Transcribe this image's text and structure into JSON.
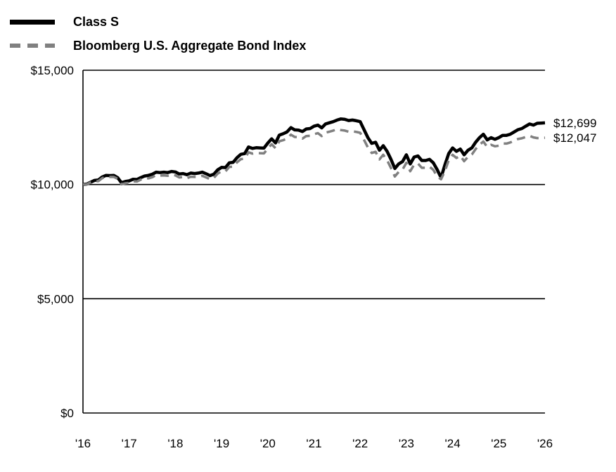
{
  "legend": {
    "items": [
      {
        "label": "Class S",
        "color": "#000000",
        "style": "solid"
      },
      {
        "label": "Bloomberg U.S. Aggregate Bond Index",
        "color": "#808080",
        "style": "dashed"
      }
    ]
  },
  "chart_data": {
    "type": "line",
    "title": "",
    "xlabel": "",
    "ylabel": "",
    "grid": "horizontal",
    "legend_position": "top-left",
    "xlim": [
      2016,
      2026
    ],
    "ylim": [
      0,
      15000
    ],
    "y_ticks": [
      0,
      5000,
      10000,
      15000
    ],
    "y_tick_labels": [
      "$0",
      "$5,000",
      "$10,000",
      "$15,000"
    ],
    "x_tick_labels": [
      "'16",
      "'17",
      "'18",
      "'19",
      "'20",
      "'21",
      "'22",
      "'23",
      "'24",
      "'25",
      "'26"
    ],
    "x_start": 2016,
    "x_step_years": 0.0833333,
    "series": [
      {
        "name": "Class S",
        "color": "#000000",
        "style": "solid",
        "stroke_width": 4.5,
        "end_label": "$12,699",
        "end_value": 12699,
        "values": [
          10000,
          10020,
          10100,
          10180,
          10200,
          10330,
          10400,
          10390,
          10400,
          10300,
          10080,
          10130,
          10160,
          10230,
          10220,
          10300,
          10370,
          10400,
          10450,
          10540,
          10520,
          10540,
          10520,
          10570,
          10550,
          10460,
          10480,
          10430,
          10500,
          10480,
          10500,
          10540,
          10470,
          10390,
          10450,
          10640,
          10750,
          10740,
          10950,
          10970,
          11170,
          11320,
          11350,
          11640,
          11580,
          11610,
          11600,
          11590,
          11810,
          12000,
          11820,
          12160,
          12220,
          12300,
          12490,
          12390,
          12380,
          12320,
          12430,
          12450,
          12550,
          12600,
          12480,
          12650,
          12700,
          12750,
          12820,
          12870,
          12850,
          12800,
          12820,
          12790,
          12750,
          12400,
          12050,
          11800,
          11850,
          11500,
          11700,
          11450,
          11100,
          10700,
          10900,
          11000,
          11300,
          10900,
          11200,
          11250,
          11050,
          11050,
          11100,
          10950,
          10650,
          10300,
          10850,
          11350,
          11600,
          11450,
          11550,
          11300,
          11500,
          11600,
          11850,
          12050,
          12200,
          11950,
          12050,
          11980,
          12050,
          12150,
          12150,
          12200,
          12300,
          12400,
          12450,
          12550,
          12650,
          12600,
          12680,
          12690,
          12699
        ]
      },
      {
        "name": "Bloomberg U.S. Aggregate Bond Index",
        "color": "#808080",
        "style": "dashed",
        "stroke_width": 3.5,
        "end_label": "$12,047",
        "end_value": 12047,
        "values": [
          10000,
          10010,
          10090,
          10130,
          10150,
          10280,
          10340,
          10330,
          10330,
          10250,
          10010,
          10050,
          10070,
          10140,
          10130,
          10210,
          10280,
          10270,
          10320,
          10410,
          10390,
          10400,
          10380,
          10430,
          10400,
          10310,
          10330,
          10280,
          10340,
          10330,
          10330,
          10380,
          10310,
          10230,
          10290,
          10480,
          10580,
          10570,
          10770,
          10780,
          10970,
          11110,
          11130,
          11410,
          11350,
          11380,
          11370,
          11360,
          11570,
          11760,
          11590,
          11890,
          11940,
          12010,
          12180,
          12080,
          12070,
          12010,
          12120,
          12130,
          12200,
          12250,
          12120,
          12270,
          12310,
          12360,
          12420,
          12380,
          12360,
          12310,
          12330,
          12300,
          12260,
          11950,
          11620,
          11380,
          11430,
          11100,
          11300,
          11060,
          10720,
          10350,
          10550,
          10650,
          10950,
          10580,
          10870,
          10920,
          10730,
          10730,
          10780,
          10640,
          10350,
          10230,
          10580,
          11060,
          11300,
          11160,
          11260,
          11020,
          11210,
          11310,
          11550,
          11740,
          11880,
          11640,
          11740,
          11670,
          11700,
          11790,
          11790,
          11840,
          11920,
          11990,
          12020,
          12080,
          12130,
          12060,
          12030,
          12040,
          12047
        ]
      }
    ]
  }
}
